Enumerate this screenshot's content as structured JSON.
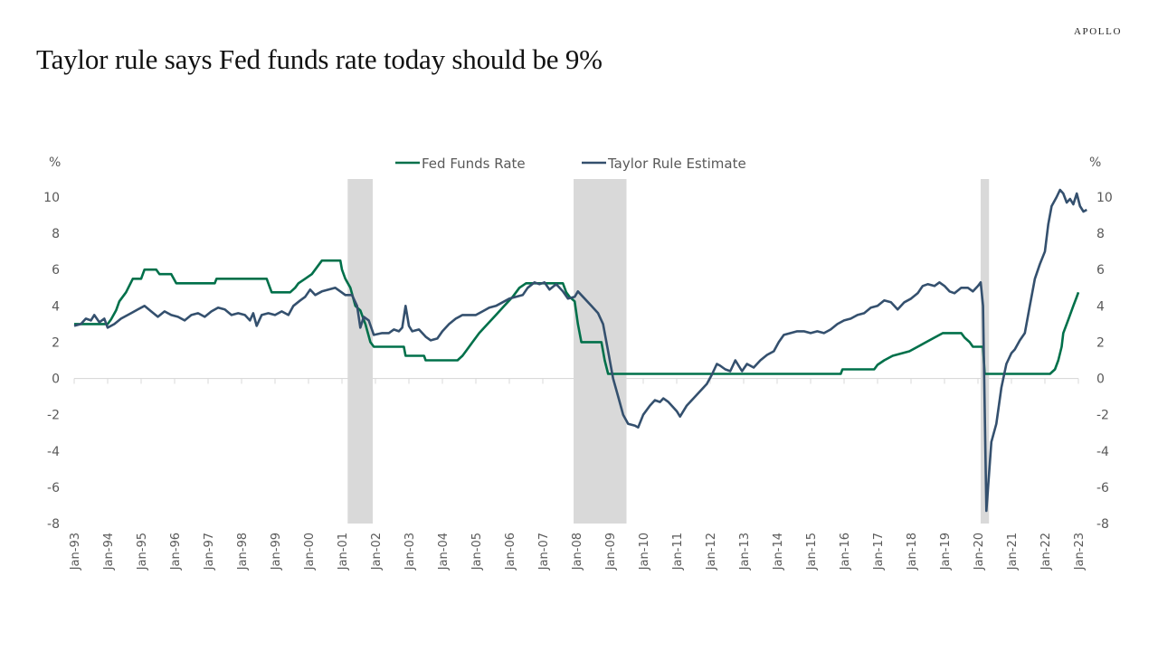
{
  "header": {
    "brand": "APOLLO",
    "title": "Taylor rule says Fed funds rate today should be 9%"
  },
  "chart_data": {
    "type": "line",
    "title": "Taylor rule says Fed funds rate today should be 9%",
    "xlabel": "",
    "ylabel_left": "%",
    "ylabel_right": "%",
    "ylim": [
      -8,
      10
    ],
    "yticks": [
      10,
      8,
      6,
      4,
      2,
      0,
      -2,
      -4,
      -6,
      -8
    ],
    "xlim": [
      1993.0,
      2023.0
    ],
    "xticks": [
      "Jan-93",
      "Jan-94",
      "Jan-95",
      "Jan-96",
      "Jan-97",
      "Jan-98",
      "Jan-99",
      "Jan-00",
      "Jan-01",
      "Jan-02",
      "Jan-03",
      "Jan-04",
      "Jan-05",
      "Jan-06",
      "Jan-07",
      "Jan-08",
      "Jan-09",
      "Jan-10",
      "Jan-11",
      "Jan-12",
      "Jan-13",
      "Jan-14",
      "Jan-15",
      "Jan-16",
      "Jan-17",
      "Jan-18",
      "Jan-19",
      "Jan-20",
      "Jan-21",
      "Jan-22",
      "Jan-23"
    ],
    "legend": {
      "placement": "top-center"
    },
    "grid": false,
    "recessions": [
      {
        "start": 2001.17,
        "end": 2001.92
      },
      {
        "start": 2007.92,
        "end": 2009.5
      },
      {
        "start": 2020.08,
        "end": 2020.33
      }
    ],
    "series": [
      {
        "name": "Fed Funds Rate",
        "color": "#00704A",
        "points": [
          [
            1993.0,
            3.0
          ],
          [
            1994.0,
            3.0
          ],
          [
            1994.1,
            3.25
          ],
          [
            1994.25,
            3.75
          ],
          [
            1994.35,
            4.25
          ],
          [
            1994.55,
            4.75
          ],
          [
            1994.75,
            5.5
          ],
          [
            1995.0,
            5.5
          ],
          [
            1995.1,
            6.0
          ],
          [
            1995.45,
            6.0
          ],
          [
            1995.55,
            5.75
          ],
          [
            1995.9,
            5.75
          ],
          [
            1996.05,
            5.25
          ],
          [
            1997.2,
            5.25
          ],
          [
            1997.25,
            5.5
          ],
          [
            1998.75,
            5.5
          ],
          [
            1998.8,
            5.25
          ],
          [
            1998.9,
            4.75
          ],
          [
            1999.45,
            4.75
          ],
          [
            1999.6,
            5.0
          ],
          [
            1999.7,
            5.25
          ],
          [
            1999.9,
            5.5
          ],
          [
            2000.1,
            5.75
          ],
          [
            2000.2,
            6.0
          ],
          [
            2000.4,
            6.5
          ],
          [
            2000.95,
            6.5
          ],
          [
            2001.0,
            6.0
          ],
          [
            2001.1,
            5.5
          ],
          [
            2001.25,
            5.0
          ],
          [
            2001.4,
            4.0
          ],
          [
            2001.55,
            3.75
          ],
          [
            2001.7,
            3.0
          ],
          [
            2001.85,
            2.0
          ],
          [
            2001.95,
            1.75
          ],
          [
            2002.85,
            1.75
          ],
          [
            2002.9,
            1.25
          ],
          [
            2003.45,
            1.25
          ],
          [
            2003.5,
            1.0
          ],
          [
            2004.45,
            1.0
          ],
          [
            2004.6,
            1.25
          ],
          [
            2004.7,
            1.5
          ],
          [
            2004.9,
            2.0
          ],
          [
            2005.1,
            2.5
          ],
          [
            2005.35,
            3.0
          ],
          [
            2005.6,
            3.5
          ],
          [
            2005.85,
            4.0
          ],
          [
            2006.1,
            4.5
          ],
          [
            2006.3,
            5.0
          ],
          [
            2006.5,
            5.25
          ],
          [
            2007.6,
            5.25
          ],
          [
            2007.7,
            4.75
          ],
          [
            2007.8,
            4.5
          ],
          [
            2007.95,
            4.25
          ],
          [
            2008.05,
            3.0
          ],
          [
            2008.15,
            2.0
          ],
          [
            2008.75,
            2.0
          ],
          [
            2008.85,
            1.0
          ],
          [
            2008.95,
            0.25
          ],
          [
            2015.9,
            0.25
          ],
          [
            2015.95,
            0.5
          ],
          [
            2016.9,
            0.5
          ],
          [
            2017.0,
            0.75
          ],
          [
            2017.2,
            1.0
          ],
          [
            2017.45,
            1.25
          ],
          [
            2017.95,
            1.5
          ],
          [
            2018.2,
            1.75
          ],
          [
            2018.45,
            2.0
          ],
          [
            2018.7,
            2.25
          ],
          [
            2018.95,
            2.5
          ],
          [
            2019.5,
            2.5
          ],
          [
            2019.6,
            2.25
          ],
          [
            2019.75,
            2.0
          ],
          [
            2019.85,
            1.75
          ],
          [
            2020.15,
            1.75
          ],
          [
            2020.2,
            0.25
          ],
          [
            2022.15,
            0.25
          ],
          [
            2022.3,
            0.5
          ],
          [
            2022.4,
            1.0
          ],
          [
            2022.5,
            1.75
          ],
          [
            2022.55,
            2.5
          ],
          [
            2022.7,
            3.25
          ],
          [
            2022.85,
            4.0
          ],
          [
            2022.95,
            4.5
          ],
          [
            2023.0,
            4.75
          ]
        ]
      },
      {
        "name": "Taylor Rule Estimate",
        "color": "#34506E",
        "points": [
          [
            1993.0,
            2.9
          ],
          [
            1993.2,
            3.0
          ],
          [
            1993.35,
            3.3
          ],
          [
            1993.5,
            3.2
          ],
          [
            1993.6,
            3.5
          ],
          [
            1993.75,
            3.1
          ],
          [
            1993.9,
            3.3
          ],
          [
            1994.0,
            2.8
          ],
          [
            1994.2,
            3.0
          ],
          [
            1994.4,
            3.3
          ],
          [
            1994.7,
            3.6
          ],
          [
            1994.9,
            3.8
          ],
          [
            1995.1,
            4.0
          ],
          [
            1995.3,
            3.7
          ],
          [
            1995.5,
            3.4
          ],
          [
            1995.7,
            3.7
          ],
          [
            1995.9,
            3.5
          ],
          [
            1996.1,
            3.4
          ],
          [
            1996.3,
            3.2
          ],
          [
            1996.5,
            3.5
          ],
          [
            1996.7,
            3.6
          ],
          [
            1996.9,
            3.4
          ],
          [
            1997.1,
            3.7
          ],
          [
            1997.3,
            3.9
          ],
          [
            1997.5,
            3.8
          ],
          [
            1997.7,
            3.5
          ],
          [
            1997.9,
            3.6
          ],
          [
            1998.1,
            3.5
          ],
          [
            1998.25,
            3.2
          ],
          [
            1998.35,
            3.6
          ],
          [
            1998.45,
            2.9
          ],
          [
            1998.6,
            3.5
          ],
          [
            1998.8,
            3.6
          ],
          [
            1999.0,
            3.5
          ],
          [
            1999.2,
            3.7
          ],
          [
            1999.4,
            3.5
          ],
          [
            1999.55,
            4.0
          ],
          [
            1999.75,
            4.3
          ],
          [
            1999.9,
            4.5
          ],
          [
            2000.05,
            4.9
          ],
          [
            2000.2,
            4.6
          ],
          [
            2000.4,
            4.8
          ],
          [
            2000.6,
            4.9
          ],
          [
            2000.8,
            5.0
          ],
          [
            2000.95,
            4.8
          ],
          [
            2001.1,
            4.6
          ],
          [
            2001.3,
            4.6
          ],
          [
            2001.45,
            4.0
          ],
          [
            2001.55,
            2.8
          ],
          [
            2001.65,
            3.4
          ],
          [
            2001.8,
            3.2
          ],
          [
            2001.95,
            2.4
          ],
          [
            2002.2,
            2.5
          ],
          [
            2002.4,
            2.5
          ],
          [
            2002.55,
            2.7
          ],
          [
            2002.7,
            2.6
          ],
          [
            2002.8,
            2.8
          ],
          [
            2002.9,
            4.0
          ],
          [
            2003.0,
            2.9
          ],
          [
            2003.1,
            2.6
          ],
          [
            2003.3,
            2.7
          ],
          [
            2003.5,
            2.3
          ],
          [
            2003.65,
            2.1
          ],
          [
            2003.85,
            2.2
          ],
          [
            2004.0,
            2.6
          ],
          [
            2004.2,
            3.0
          ],
          [
            2004.4,
            3.3
          ],
          [
            2004.6,
            3.5
          ],
          [
            2004.8,
            3.5
          ],
          [
            2005.0,
            3.5
          ],
          [
            2005.2,
            3.7
          ],
          [
            2005.4,
            3.9
          ],
          [
            2005.6,
            4.0
          ],
          [
            2005.8,
            4.2
          ],
          [
            2006.0,
            4.4
          ],
          [
            2006.2,
            4.5
          ],
          [
            2006.4,
            4.6
          ],
          [
            2006.55,
            5.0
          ],
          [
            2006.75,
            5.3
          ],
          [
            2006.9,
            5.2
          ],
          [
            2007.05,
            5.3
          ],
          [
            2007.2,
            4.9
          ],
          [
            2007.4,
            5.2
          ],
          [
            2007.6,
            4.8
          ],
          [
            2007.75,
            4.4
          ],
          [
            2007.95,
            4.5
          ],
          [
            2008.05,
            4.8
          ],
          [
            2008.25,
            4.4
          ],
          [
            2008.45,
            4.0
          ],
          [
            2008.65,
            3.6
          ],
          [
            2008.8,
            3.0
          ],
          [
            2008.95,
            1.5
          ],
          [
            2009.1,
            0.0
          ],
          [
            2009.25,
            -1.0
          ],
          [
            2009.4,
            -2.0
          ],
          [
            2009.55,
            -2.5
          ],
          [
            2009.75,
            -2.6
          ],
          [
            2009.85,
            -2.7
          ],
          [
            2010.0,
            -2.0
          ],
          [
            2010.2,
            -1.5
          ],
          [
            2010.35,
            -1.2
          ],
          [
            2010.5,
            -1.3
          ],
          [
            2010.6,
            -1.1
          ],
          [
            2010.75,
            -1.3
          ],
          [
            2010.9,
            -1.6
          ],
          [
            2011.0,
            -1.8
          ],
          [
            2011.1,
            -2.1
          ],
          [
            2011.3,
            -1.5
          ],
          [
            2011.5,
            -1.1
          ],
          [
            2011.7,
            -0.7
          ],
          [
            2011.9,
            -0.3
          ],
          [
            2012.05,
            0.2
          ],
          [
            2012.2,
            0.8
          ],
          [
            2012.3,
            0.7
          ],
          [
            2012.45,
            0.5
          ],
          [
            2012.6,
            0.4
          ],
          [
            2012.75,
            1.0
          ],
          [
            2012.95,
            0.4
          ],
          [
            2013.1,
            0.8
          ],
          [
            2013.3,
            0.6
          ],
          [
            2013.5,
            1.0
          ],
          [
            2013.7,
            1.3
          ],
          [
            2013.9,
            1.5
          ],
          [
            2014.05,
            2.0
          ],
          [
            2014.2,
            2.4
          ],
          [
            2014.4,
            2.5
          ],
          [
            2014.6,
            2.6
          ],
          [
            2014.8,
            2.6
          ],
          [
            2015.0,
            2.5
          ],
          [
            2015.2,
            2.6
          ],
          [
            2015.4,
            2.5
          ],
          [
            2015.6,
            2.7
          ],
          [
            2015.8,
            3.0
          ],
          [
            2016.0,
            3.2
          ],
          [
            2016.2,
            3.3
          ],
          [
            2016.4,
            3.5
          ],
          [
            2016.6,
            3.6
          ],
          [
            2016.8,
            3.9
          ],
          [
            2017.0,
            4.0
          ],
          [
            2017.2,
            4.3
          ],
          [
            2017.4,
            4.2
          ],
          [
            2017.6,
            3.8
          ],
          [
            2017.8,
            4.2
          ],
          [
            2018.0,
            4.4
          ],
          [
            2018.2,
            4.7
          ],
          [
            2018.35,
            5.1
          ],
          [
            2018.5,
            5.2
          ],
          [
            2018.7,
            5.1
          ],
          [
            2018.85,
            5.3
          ],
          [
            2019.0,
            5.1
          ],
          [
            2019.15,
            4.8
          ],
          [
            2019.3,
            4.7
          ],
          [
            2019.5,
            5.0
          ],
          [
            2019.7,
            5.0
          ],
          [
            2019.85,
            4.8
          ],
          [
            2020.0,
            5.1
          ],
          [
            2020.08,
            5.3
          ],
          [
            2020.15,
            4.0
          ],
          [
            2020.25,
            -7.3
          ],
          [
            2020.4,
            -3.5
          ],
          [
            2020.55,
            -2.5
          ],
          [
            2020.7,
            -0.5
          ],
          [
            2020.85,
            0.8
          ],
          [
            2021.0,
            1.4
          ],
          [
            2021.1,
            1.6
          ],
          [
            2021.25,
            2.1
          ],
          [
            2021.4,
            2.5
          ],
          [
            2021.55,
            4.0
          ],
          [
            2021.7,
            5.5
          ],
          [
            2021.85,
            6.3
          ],
          [
            2022.0,
            7.0
          ],
          [
            2022.1,
            8.5
          ],
          [
            2022.2,
            9.5
          ],
          [
            2022.35,
            10.0
          ],
          [
            2022.45,
            10.4
          ],
          [
            2022.55,
            10.2
          ],
          [
            2022.65,
            9.7
          ],
          [
            2022.75,
            9.9
          ],
          [
            2022.85,
            9.6
          ],
          [
            2022.95,
            10.2
          ],
          [
            2023.05,
            9.5
          ],
          [
            2023.15,
            9.2
          ],
          [
            2023.25,
            9.3
          ]
        ]
      }
    ]
  }
}
